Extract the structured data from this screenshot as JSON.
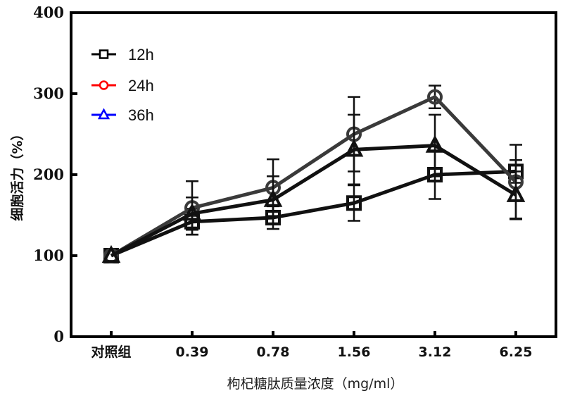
{
  "chart_data": {
    "type": "line",
    "title": "",
    "xlabel": "枸杞糖肽质量浓度（mg/ml）",
    "ylabel": "细胞活力（%）",
    "categories": [
      "对照组",
      "0.39",
      "0.78",
      "1.56",
      "3.12",
      "6.25"
    ],
    "ylim": [
      0,
      400
    ],
    "yticks": [
      "0",
      "100",
      "200",
      "300",
      "400"
    ],
    "grid": false,
    "legend_position": "top-left",
    "series": [
      {
        "name": "12h",
        "marker": "square",
        "legend_color": "#000000",
        "line_color": "#111111",
        "values": [
          100,
          142,
          147,
          165,
          200,
          204
        ],
        "errors": [
          0,
          16,
          14,
          22,
          30,
          14
        ]
      },
      {
        "name": "24h",
        "marker": "circle",
        "legend_color": "#ff0000",
        "line_color": "#3a3a3a",
        "values": [
          100,
          159,
          184,
          250,
          296,
          191
        ],
        "errors": [
          0,
          33,
          35,
          46,
          14,
          46
        ]
      },
      {
        "name": "36h",
        "marker": "triangle",
        "legend_color": "#0000ff",
        "line_color": "#111111",
        "values": [
          100,
          152,
          169,
          231,
          236,
          175
        ],
        "errors": [
          0,
          20,
          29,
          43,
          38,
          29
        ]
      }
    ]
  }
}
